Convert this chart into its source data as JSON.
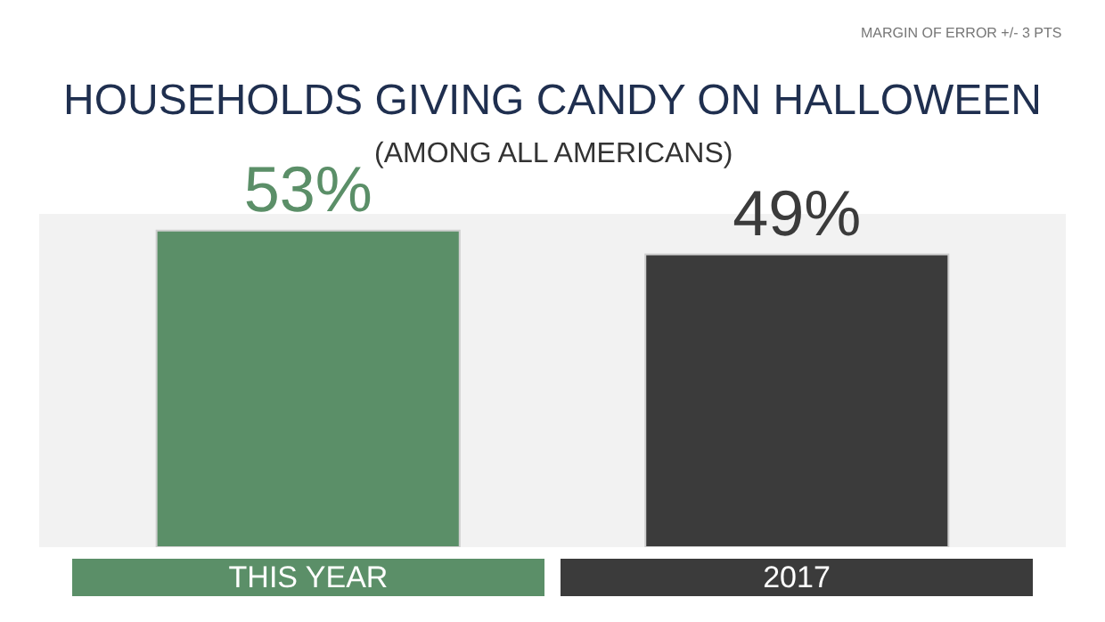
{
  "chart_data": {
    "type": "bar",
    "title": "HOUSEHOLDS GIVING CANDY ON HALLOWEEN",
    "subtitle": "(AMONG ALL AMERICANS)",
    "annotations": [
      "MARGIN OF ERROR +/- 3 PTS"
    ],
    "categories": [
      "THIS YEAR",
      "2017"
    ],
    "values": [
      53,
      49
    ],
    "colors": [
      "#5b8f68",
      "#3b3b3b"
    ],
    "value_labels": [
      "53%",
      "49%"
    ]
  }
}
